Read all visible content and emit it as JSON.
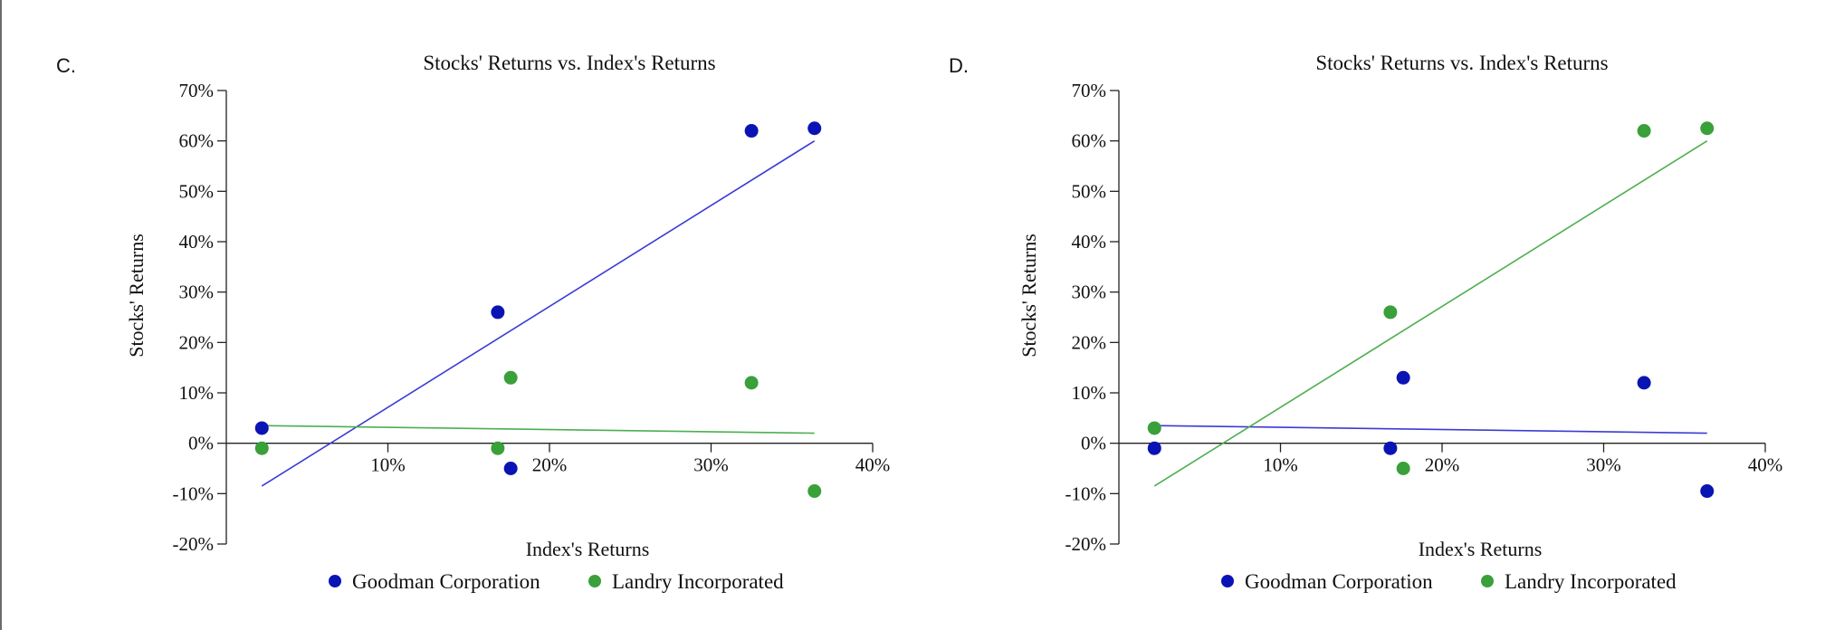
{
  "panels": [
    {
      "label": "C.",
      "chart": {
        "type": "scatter",
        "title": "Stocks' Returns vs. Index's Returns",
        "xlabel": "Index's Returns",
        "ylabel": "Stocks' Returns",
        "xlim": [
          0,
          40
        ],
        "ylim": [
          -20,
          70
        ],
        "xticks": [
          10,
          20,
          30,
          40
        ],
        "xtick_labels": [
          "10%",
          "20%",
          "30%",
          "40%"
        ],
        "yticks": [
          -20,
          -10,
          0,
          10,
          20,
          30,
          40,
          50,
          60,
          70
        ],
        "ytick_labels": [
          "-20%",
          "-10%",
          "0%",
          "10%",
          "20%",
          "30%",
          "40%",
          "50%",
          "60%",
          "70%"
        ],
        "legend_position": "bottom",
        "series": [
          {
            "name": "Goodman Corporation",
            "color": "#0a14b4",
            "line_color": "#3b3bd6",
            "points": [
              [
                2.2,
                3
              ],
              [
                16.8,
                26
              ],
              [
                17.6,
                -5
              ],
              [
                32.5,
                62
              ],
              [
                36.4,
                62.5
              ]
            ],
            "trendline": [
              [
                2.2,
                -8.5
              ],
              [
                36.4,
                60
              ]
            ]
          },
          {
            "name": "Landry Incorporated",
            "color": "#3aa03a",
            "line_color": "#4caf50",
            "points": [
              [
                2.2,
                -1
              ],
              [
                16.8,
                -1
              ],
              [
                17.6,
                13
              ],
              [
                32.5,
                12
              ],
              [
                36.4,
                -9.5
              ]
            ],
            "trendline": [
              [
                2.2,
                3.5
              ],
              [
                36.4,
                2
              ]
            ]
          }
        ]
      }
    },
    {
      "label": "D.",
      "chart": {
        "type": "scatter",
        "title": "Stocks' Returns vs. Index's Returns",
        "xlabel": "Index's Returns",
        "ylabel": "Stocks' Returns",
        "xlim": [
          0,
          40
        ],
        "ylim": [
          -20,
          70
        ],
        "xticks": [
          10,
          20,
          30,
          40
        ],
        "xtick_labels": [
          "10%",
          "20%",
          "30%",
          "40%"
        ],
        "yticks": [
          -20,
          -10,
          0,
          10,
          20,
          30,
          40,
          50,
          60,
          70
        ],
        "ytick_labels": [
          "-20%",
          "-10%",
          "0%",
          "10%",
          "20%",
          "30%",
          "40%",
          "50%",
          "60%",
          "70%"
        ],
        "legend_position": "bottom",
        "series": [
          {
            "name": "Goodman Corporation",
            "color": "#0a14b4",
            "line_color": "#3b3bd6",
            "points": [
              [
                2.2,
                -1
              ],
              [
                16.8,
                -1
              ],
              [
                17.6,
                13
              ],
              [
                32.5,
                12
              ],
              [
                36.4,
                -9.5
              ]
            ],
            "trendline": [
              [
                2.2,
                3.5
              ],
              [
                36.4,
                2
              ]
            ]
          },
          {
            "name": "Landry Incorporated",
            "color": "#3aa03a",
            "line_color": "#4caf50",
            "points": [
              [
                2.2,
                3
              ],
              [
                16.8,
                26
              ],
              [
                17.6,
                -5
              ],
              [
                32.5,
                62
              ],
              [
                36.4,
                62.5
              ]
            ],
            "trendline": [
              [
                2.2,
                -8.5
              ],
              [
                36.4,
                60
              ]
            ]
          }
        ]
      }
    }
  ]
}
